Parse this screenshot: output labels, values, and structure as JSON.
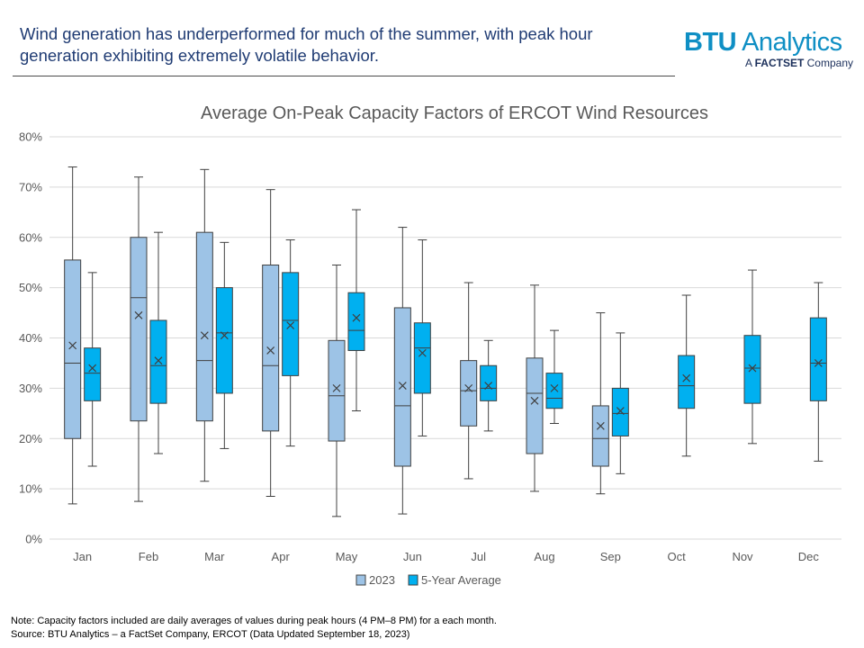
{
  "header": {
    "headline": "Wind generation has underperformed  for much of the summer, with peak hour generation exhibiting extremely volatile behavior.",
    "logo_main_bold": "BTU",
    "logo_main_rest": " Analytics",
    "logo_sub_prefix": "A ",
    "logo_sub_brand": "FACTSET",
    "logo_sub_suffix": " Company"
  },
  "notes": {
    "note": "Note:  Capacity factors included are daily averages of values during peak hours (4 PM–8 PM) for a each month.",
    "source": "Source: BTU Analytics – a FactSet Company, ERCOT (Data Updated September  18, 2023)"
  },
  "colors": {
    "series_2023_fill": "#9dc3e6",
    "series_5yr_fill": "#00b0f0",
    "box_stroke": "#404040",
    "grid": "#d9d9d9",
    "axis_text": "#595959"
  },
  "chart_data": {
    "type": "box",
    "title": "Average On-Peak Capacity Factors of ERCOT Wind Resources",
    "categories": [
      "Jan",
      "Feb",
      "Mar",
      "Apr",
      "May",
      "Jun",
      "Jul",
      "Aug",
      "Sep",
      "Oct",
      "Nov",
      "Dec"
    ],
    "ylim": [
      0,
      80
    ],
    "yticks": [
      "0%",
      "10%",
      "20%",
      "30%",
      "40%",
      "50%",
      "60%",
      "70%",
      "80%"
    ],
    "grid": true,
    "legend_position": "bottom",
    "series": [
      {
        "name": "2023",
        "boxes": [
          {
            "min": 7,
            "q1": 20,
            "median": 35,
            "q3": 55.5,
            "max": 74,
            "mean": 38.5
          },
          {
            "min": 7.5,
            "q1": 23.5,
            "median": 48,
            "q3": 60,
            "max": 72,
            "mean": 44.5
          },
          {
            "min": 11.5,
            "q1": 23.5,
            "median": 35.5,
            "q3": 61,
            "max": 73.5,
            "mean": 40.5
          },
          {
            "min": 8.5,
            "q1": 21.5,
            "median": 34.5,
            "q3": 54.5,
            "max": 69.5,
            "mean": 37.5
          },
          {
            "min": 4.5,
            "q1": 19.5,
            "median": 28.5,
            "q3": 39.5,
            "max": 54.5,
            "mean": 30
          },
          {
            "min": 5,
            "q1": 14.5,
            "median": 26.5,
            "q3": 46,
            "max": 62,
            "mean": 30.5
          },
          {
            "min": 12,
            "q1": 22.5,
            "median": 29.5,
            "q3": 35.5,
            "max": 51,
            "mean": 30
          },
          {
            "min": 9.5,
            "q1": 17,
            "median": 29,
            "q3": 36,
            "max": 50.5,
            "mean": 27.5
          },
          {
            "min": 9,
            "q1": 14.5,
            "median": 20,
            "q3": 26.5,
            "max": 45,
            "mean": 22.5
          },
          null,
          null,
          null
        ]
      },
      {
        "name": "5-Year Average",
        "boxes": [
          {
            "min": 14.5,
            "q1": 27.5,
            "median": 33,
            "q3": 38,
            "max": 53,
            "mean": 34
          },
          {
            "min": 17,
            "q1": 27,
            "median": 34.5,
            "q3": 43.5,
            "max": 61,
            "mean": 35.5
          },
          {
            "min": 18,
            "q1": 29,
            "median": 41,
            "q3": 50,
            "max": 59,
            "mean": 40.5
          },
          {
            "min": 18.5,
            "q1": 32.5,
            "median": 43.5,
            "q3": 53,
            "max": 59.5,
            "mean": 42.5
          },
          {
            "min": 25.5,
            "q1": 37.5,
            "median": 41.5,
            "q3": 49,
            "max": 65.5,
            "mean": 44
          },
          {
            "min": 20.5,
            "q1": 29,
            "median": 38,
            "q3": 43,
            "max": 59.5,
            "mean": 37
          },
          {
            "min": 21.5,
            "q1": 27.5,
            "median": 30,
            "q3": 34.5,
            "max": 39.5,
            "mean": 30.5
          },
          {
            "min": 23,
            "q1": 26,
            "median": 28,
            "q3": 33,
            "max": 41.5,
            "mean": 30
          },
          {
            "min": 13,
            "q1": 20.5,
            "median": 25,
            "q3": 30,
            "max": 41,
            "mean": 25.5
          },
          {
            "min": 16.5,
            "q1": 26,
            "median": 30.5,
            "q3": 36.5,
            "max": 48.5,
            "mean": 32
          },
          {
            "min": 19,
            "q1": 27,
            "median": 34,
            "q3": 40.5,
            "max": 53.5,
            "mean": 34
          },
          {
            "min": 15.5,
            "q1": 27.5,
            "median": 35,
            "q3": 44,
            "max": 51,
            "mean": 35
          }
        ]
      }
    ]
  }
}
